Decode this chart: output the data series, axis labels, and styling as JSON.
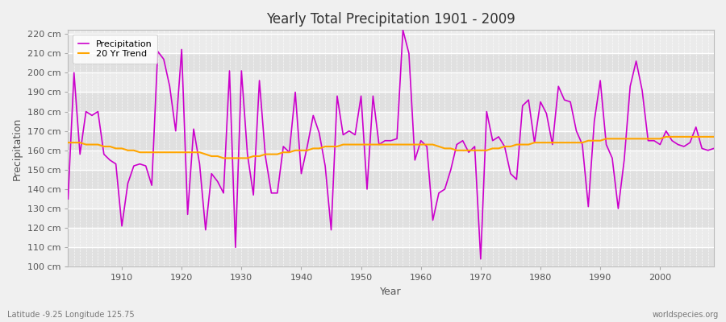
{
  "title": "Yearly Total Precipitation 1901 - 2009",
  "xlabel": "Year",
  "ylabel": "Precipitation",
  "subtitle_left": "Latitude -9.25 Longitude 125.75",
  "subtitle_right": "worldspecies.org",
  "line_color": "#CC00CC",
  "trend_color": "#FFA500",
  "background_color": "#F0F0F0",
  "plot_bg_light": "#EBEBEB",
  "plot_bg_dark": "#E0E0E0",
  "ylim": [
    100,
    222
  ],
  "xlim": [
    1901,
    2009
  ],
  "years": [
    1901,
    1902,
    1903,
    1904,
    1905,
    1906,
    1907,
    1908,
    1909,
    1910,
    1911,
    1912,
    1913,
    1914,
    1915,
    1916,
    1917,
    1918,
    1919,
    1920,
    1921,
    1922,
    1923,
    1924,
    1925,
    1926,
    1927,
    1928,
    1929,
    1930,
    1931,
    1932,
    1933,
    1934,
    1935,
    1936,
    1937,
    1938,
    1939,
    1940,
    1941,
    1942,
    1943,
    1944,
    1945,
    1946,
    1947,
    1948,
    1949,
    1950,
    1951,
    1952,
    1953,
    1954,
    1955,
    1956,
    1957,
    1958,
    1959,
    1960,
    1961,
    1962,
    1963,
    1964,
    1965,
    1966,
    1967,
    1968,
    1969,
    1970,
    1971,
    1972,
    1973,
    1974,
    1975,
    1976,
    1977,
    1978,
    1979,
    1980,
    1981,
    1982,
    1983,
    1984,
    1985,
    1986,
    1987,
    1988,
    1989,
    1990,
    1991,
    1992,
    1993,
    1994,
    1995,
    1996,
    1997,
    1998,
    1999,
    2000,
    2001,
    2002,
    2003,
    2004,
    2005,
    2006,
    2007,
    2008,
    2009
  ],
  "precip": [
    135,
    200,
    158,
    180,
    178,
    180,
    158,
    155,
    153,
    121,
    143,
    152,
    153,
    152,
    142,
    211,
    207,
    193,
    170,
    212,
    127,
    171,
    153,
    119,
    148,
    144,
    138,
    201,
    110,
    201,
    158,
    137,
    196,
    157,
    138,
    138,
    162,
    159,
    190,
    148,
    162,
    178,
    169,
    152,
    119,
    188,
    168,
    170,
    168,
    188,
    140,
    188,
    163,
    165,
    165,
    166,
    222,
    210,
    155,
    165,
    162,
    124,
    138,
    140,
    150,
    163,
    165,
    159,
    162,
    104,
    180,
    165,
    167,
    162,
    148,
    145,
    183,
    186,
    164,
    185,
    179,
    163,
    193,
    186,
    185,
    170,
    163,
    131,
    175,
    196,
    163,
    156,
    130,
    155,
    193,
    206,
    191,
    165,
    165,
    163,
    170,
    165,
    163,
    162,
    164,
    172,
    161,
    160,
    161
  ],
  "trend": [
    164,
    164,
    164,
    163,
    163,
    163,
    162,
    162,
    161,
    161,
    160,
    160,
    159,
    159,
    159,
    159,
    159,
    159,
    159,
    159,
    159,
    159,
    159,
    158,
    157,
    157,
    156,
    156,
    156,
    156,
    156,
    157,
    157,
    158,
    158,
    158,
    159,
    159,
    160,
    160,
    160,
    161,
    161,
    162,
    162,
    162,
    163,
    163,
    163,
    163,
    163,
    163,
    163,
    163,
    163,
    163,
    163,
    163,
    163,
    163,
    163,
    163,
    162,
    161,
    161,
    160,
    160,
    160,
    160,
    160,
    160,
    161,
    161,
    162,
    162,
    163,
    163,
    163,
    164,
    164,
    164,
    164,
    164,
    164,
    164,
    164,
    164,
    165,
    165,
    165,
    166,
    166,
    166,
    166,
    166,
    166,
    166,
    166,
    166,
    166,
    167,
    167,
    167,
    167,
    167,
    167,
    167,
    167,
    167
  ]
}
